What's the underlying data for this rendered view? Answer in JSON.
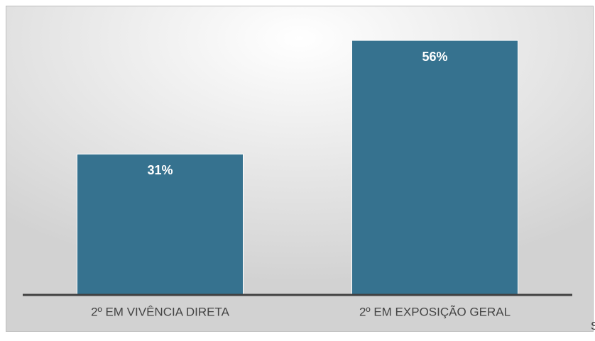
{
  "chart_data": {
    "type": "bar",
    "categories": [
      "2º EM VIVÊNCIA DIRETA",
      "2º EM EXPOSIÇÃO GERAL"
    ],
    "values": [
      31,
      56
    ],
    "value_labels": [
      "31%",
      "56%"
    ],
    "color": "#36728f"
  },
  "edge_text": "S"
}
